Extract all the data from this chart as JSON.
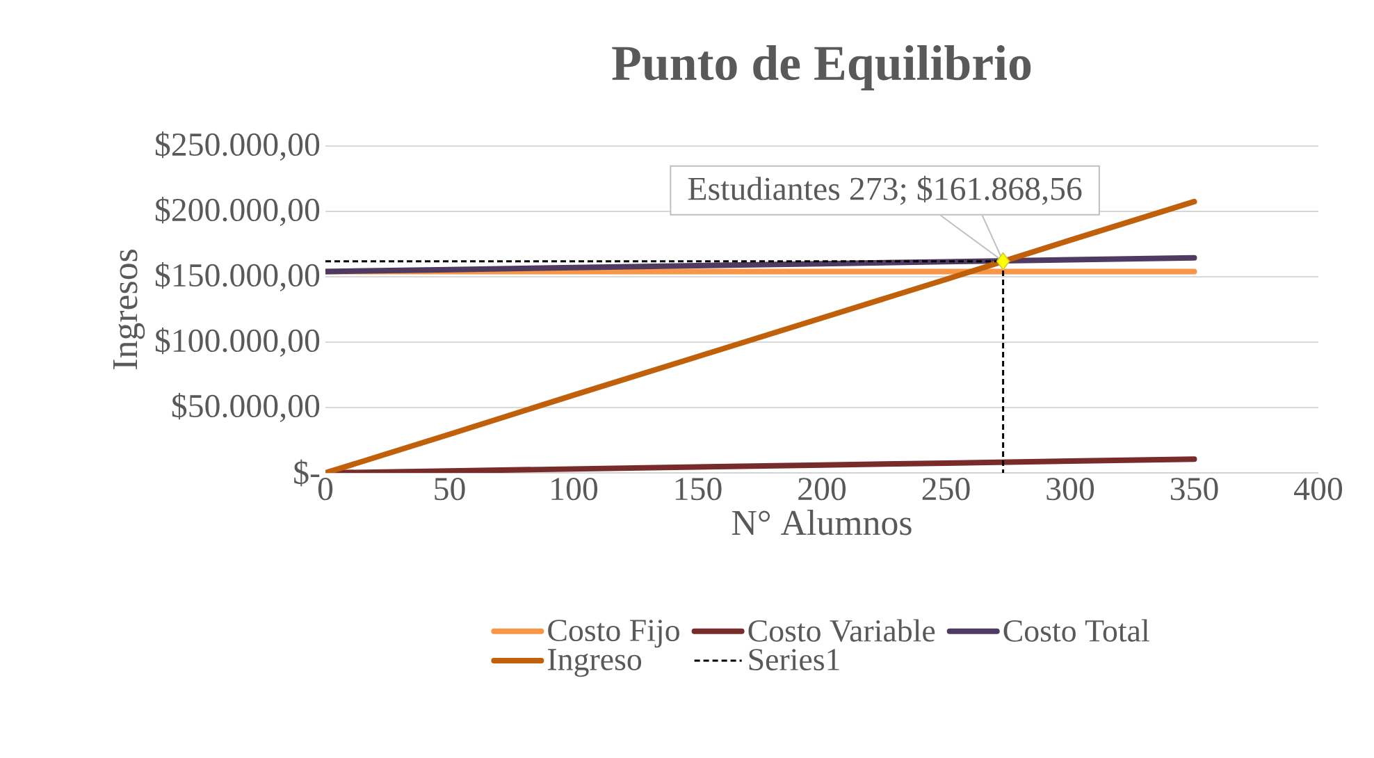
{
  "chart_data": {
    "type": "line",
    "title": "Punto de Equilibrio",
    "xlabel": "N° Alumnos",
    "ylabel": "Ingresos",
    "xlim": [
      0,
      400
    ],
    "ylim": [
      0,
      250000
    ],
    "xticks": [
      0,
      50,
      100,
      150,
      200,
      250,
      300,
      350,
      400
    ],
    "yticks": [
      {
        "value": 0,
        "label": "$-"
      },
      {
        "value": 50000,
        "label": "$50.000,00"
      },
      {
        "value": 100000,
        "label": "$100.000,00"
      },
      {
        "value": 150000,
        "label": "$150.000,00"
      },
      {
        "value": 200000,
        "label": "$200.000,00"
      },
      {
        "value": 250000,
        "label": "$250.000,00"
      }
    ],
    "grid": "y",
    "legend": "bottom",
    "marker": "none",
    "line_style": "solid",
    "series": [
      {
        "name": "Costo Fijo",
        "color": "#f79646",
        "x": [
          0,
          50,
          100,
          150,
          200,
          250,
          300,
          350
        ],
        "values": [
          154000,
          154000,
          154000,
          154000,
          154000,
          154000,
          154000,
          154000
        ]
      },
      {
        "name": "Costo Variable",
        "color": "#772c2a",
        "x": [
          0,
          50,
          100,
          150,
          200,
          250,
          300,
          350
        ],
        "values": [
          0,
          1500,
          3000,
          4500,
          6000,
          7500,
          9000,
          10500
        ]
      },
      {
        "name": "Costo Total",
        "color": "#4f3b62",
        "x": [
          0,
          50,
          100,
          150,
          200,
          250,
          300,
          350
        ],
        "values": [
          154000,
          155500,
          157000,
          158500,
          160000,
          161500,
          163000,
          164500
        ]
      },
      {
        "name": "Ingreso",
        "color": "#c0600a",
        "x": [
          0,
          50,
          100,
          150,
          200,
          250,
          300,
          350
        ],
        "values": [
          0,
          29500,
          59500,
          89000,
          118500,
          148000,
          178000,
          207500
        ]
      },
      {
        "name": "Series1",
        "color": "#000000",
        "line_style": "dashed",
        "x": [
          0,
          273,
          273
        ],
        "values": [
          161868.56,
          161868.56,
          0
        ]
      },
      {
        "type": "scatter",
        "color": "#ffff00",
        "marker": "diamond",
        "x": [
          273
        ],
        "values": [
          161868.56
        ]
      }
    ],
    "annotations": [
      {
        "text": "Estudiantes 273;  $161.868,56",
        "x": 273,
        "y": 161868.56
      }
    ]
  }
}
